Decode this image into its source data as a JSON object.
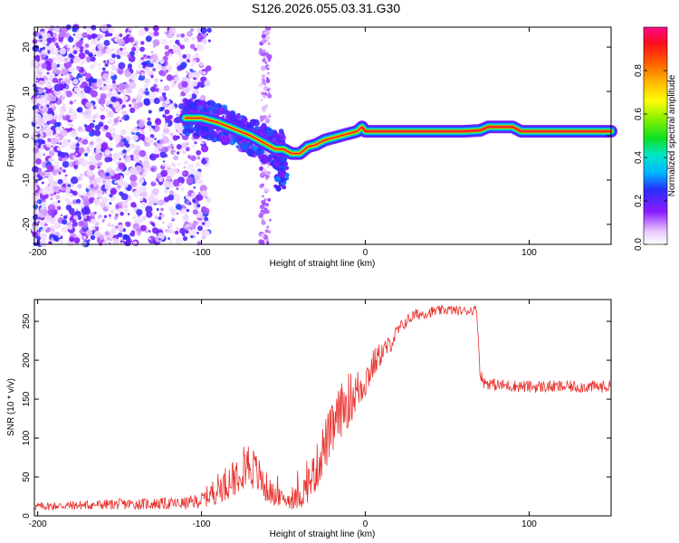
{
  "title": "S126.2026.055.03.31.G30",
  "chart_data": [
    {
      "type": "heatmap",
      "xlabel": "Height of straight line (km)",
      "ylabel": "Frequency (Hz)",
      "xlim": [
        -202,
        150
      ],
      "ylim": [
        -24.5,
        24.5
      ],
      "xticks": [
        -200,
        -100,
        0,
        100
      ],
      "xtick_labels": [
        "-200",
        "-100",
        "0",
        "100"
      ],
      "yticks": [
        -20,
        -10,
        0,
        10,
        20
      ],
      "ytick_labels": [
        "-20",
        "-10",
        "0",
        "10",
        "20"
      ],
      "colorbar": {
        "label": "Normalized spectral amplitude",
        "range": [
          0,
          1
        ],
        "ticks": [
          0.0,
          0.2,
          0.4,
          0.6,
          0.8
        ],
        "tick_labels": [
          "0.0",
          "0.2",
          "0.4",
          "0.6",
          "0.8"
        ]
      },
      "ridge": {
        "x": [
          -110,
          -100,
          -90,
          -80,
          -70,
          -60,
          -55,
          -50,
          -45,
          -40,
          -35,
          -30,
          -25,
          -20,
          -15,
          -10,
          -5,
          -2,
          0,
          10,
          20,
          40,
          60,
          70,
          75,
          80,
          90,
          95,
          100,
          120,
          150
        ],
        "y": [
          4,
          4,
          3,
          1.5,
          0,
          -2,
          -3,
          -3,
          -4,
          -4,
          -2.5,
          -2,
          -1,
          -0.5,
          0,
          0.5,
          1,
          2,
          1,
          1,
          1,
          1,
          1,
          1.2,
          2,
          2,
          2,
          1,
          1,
          1,
          1
        ]
      }
    },
    {
      "type": "line",
      "xlabel": "Height of straight line (km)",
      "ylabel": "SNR (10 * v/v)",
      "xlim": [
        -202,
        150
      ],
      "ylim": [
        0,
        278
      ],
      "xticks": [
        -200,
        -100,
        0,
        100
      ],
      "xtick_labels": [
        "-200",
        "-100",
        "0",
        "100"
      ],
      "yticks": [
        0,
        50,
        100,
        150,
        200,
        250
      ],
      "ytick_labels": [
        "0",
        "50",
        "100",
        "150",
        "200",
        "250"
      ],
      "color": "#e8302c",
      "series": [
        {
          "x": [
            -202,
            -150,
            -110,
            -100,
            -90,
            -80,
            -75,
            -70,
            -65,
            -60,
            -55,
            -50,
            -45,
            -42,
            -38,
            -30,
            -25,
            -20,
            -15,
            -10,
            -5,
            0,
            5,
            10,
            15,
            20,
            25,
            30,
            40,
            50,
            60,
            68,
            70,
            72,
            80,
            100,
            120,
            150
          ],
          "y": [
            12,
            15,
            16,
            20,
            35,
            50,
            70,
            65,
            50,
            35,
            25,
            22,
            20,
            22,
            30,
            60,
            90,
            110,
            135,
            150,
            160,
            175,
            195,
            210,
            220,
            238,
            250,
            258,
            262,
            265,
            263,
            265,
            185,
            172,
            168,
            166,
            166,
            166
          ],
          "noise": [
            5,
            7,
            8,
            10,
            20,
            25,
            35,
            30,
            25,
            20,
            12,
            10,
            12,
            15,
            20,
            30,
            35,
            35,
            35,
            35,
            30,
            25,
            20,
            15,
            12,
            10,
            8,
            8,
            7,
            6,
            6,
            6,
            8,
            8,
            8,
            8,
            8,
            8
          ]
        }
      ]
    }
  ]
}
